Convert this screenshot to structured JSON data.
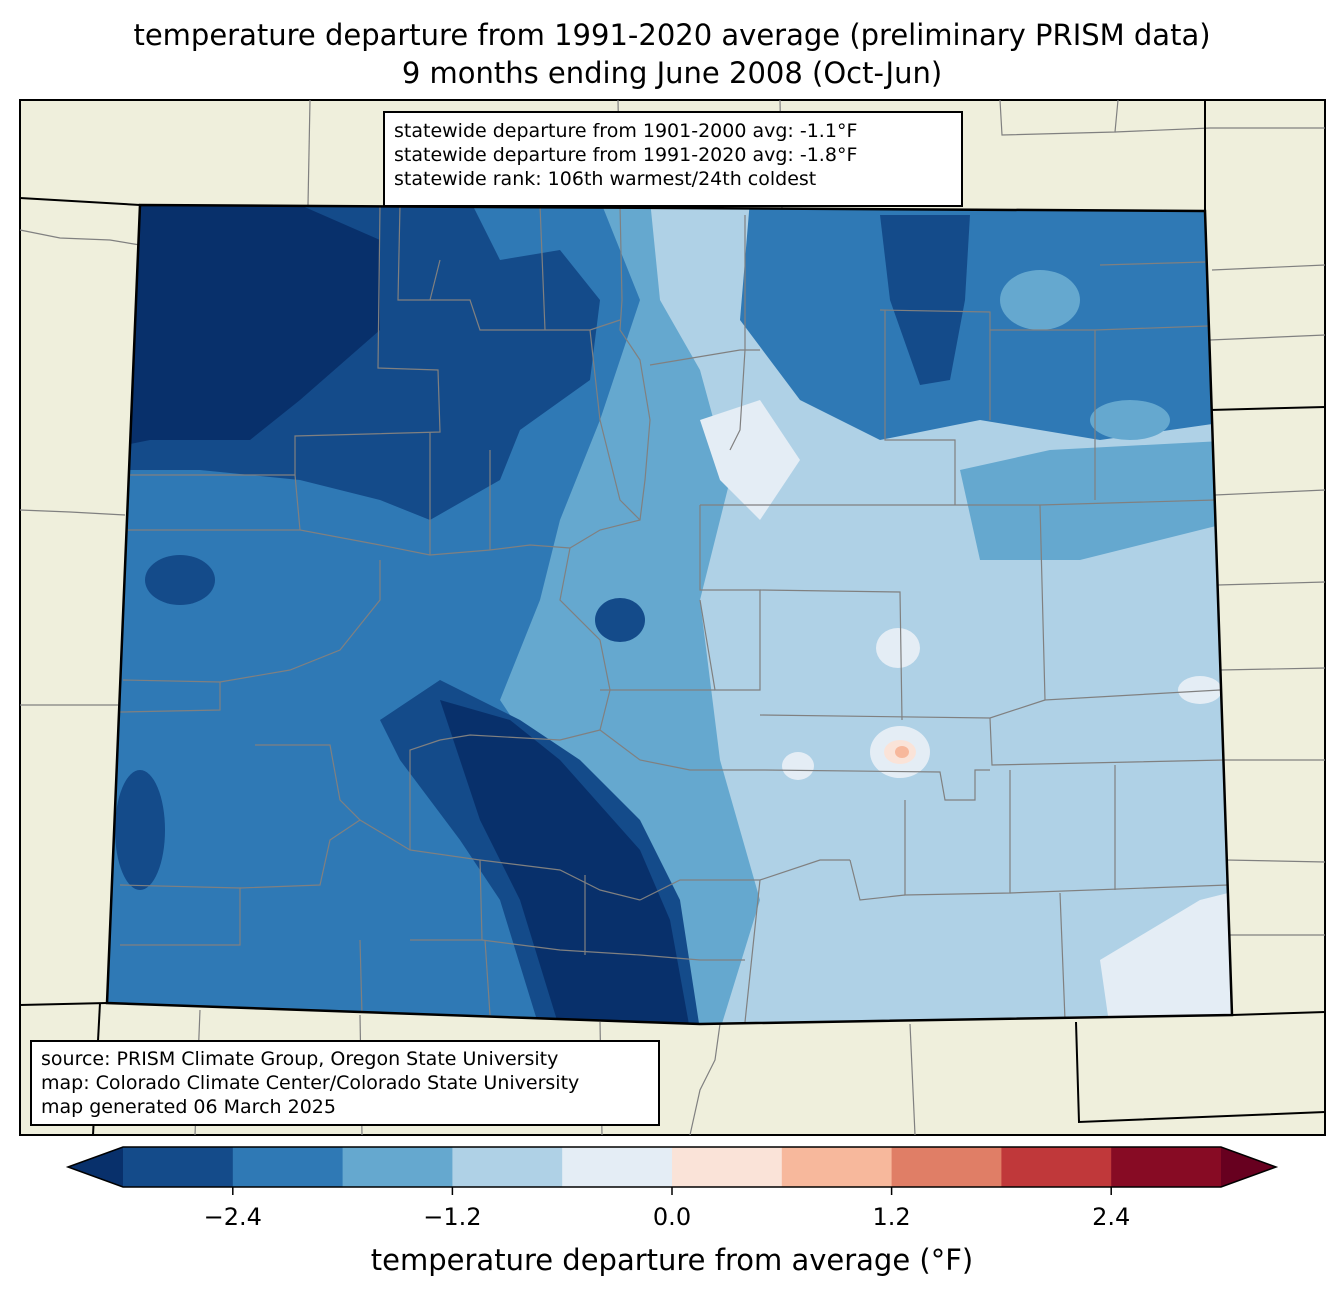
{
  "title_line1": "temperature departure from 1991-2020 average (preliminary PRISM data)",
  "title_line2": "9 months ending June 2008 (Oct-Jun)",
  "stats": {
    "line1": "statewide departure from 1901-2000 avg: -1.1°F",
    "line2": "statewide departure from 1991-2020 avg: -1.8°F",
    "line3": "statewide rank: 106th warmest/24th coldest"
  },
  "credits": {
    "line1": "source: PRISM Climate Group, Oregon State University",
    "line2": "map: Colorado Climate Center/Colorado State University",
    "line3": "map generated 06 March 2025"
  },
  "colorbar": {
    "label": "temperature departure from average (°F)",
    "ticks": [
      "−2.4",
      "−1.2",
      "0.0",
      "1.2",
      "2.4"
    ],
    "tick_values": [
      -2.4,
      -1.2,
      0.0,
      1.2,
      2.4
    ],
    "bounds": [
      -3.0,
      3.0
    ],
    "step": 0.6,
    "colors": [
      "#08306b",
      "#144b8a",
      "#2f79b5",
      "#65a8cf",
      "#afd1e6",
      "#e4edf5",
      "#fae3d8",
      "#f7b89c",
      "#e07e66",
      "#c0383a",
      "#870b24",
      "#67001f"
    ]
  },
  "colors": {
    "land": "#efefdc",
    "state_border": "#000000",
    "county_border": "#808080"
  }
}
